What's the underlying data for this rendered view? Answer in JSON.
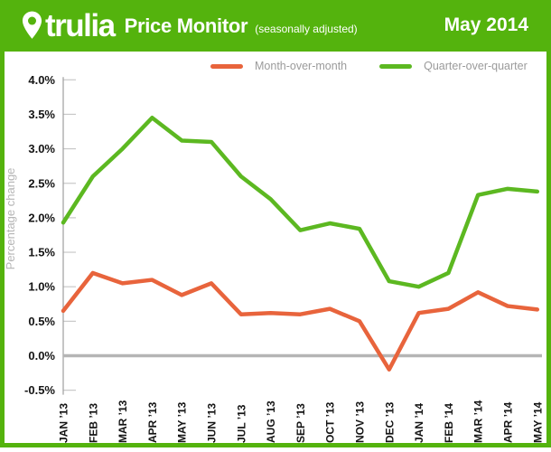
{
  "header": {
    "logo_text": "trulia",
    "title": "Price Monitor",
    "subtitle": "(seasonally adjusted)",
    "date": "May 2014"
  },
  "legend": {
    "items": [
      {
        "label": "Month-over-month",
        "color": "#E8643C"
      },
      {
        "label": "Quarter-over-quarter",
        "color": "#5CB821"
      }
    ]
  },
  "chart_data": {
    "type": "line",
    "title": "Trulia Price Monitor (seasonally adjusted) - May 2014",
    "xlabel": "",
    "ylabel": "Percentage change",
    "categories": [
      "JAN ’13",
      "FEB ’13",
      "MAR ’13",
      "APR ’13",
      "MAY ’13",
      "JUN ’13",
      "JUL ’13",
      "AUG ’13",
      "SEP ’13",
      "OCT ’13",
      "NOV ’13",
      "DEC ’13",
      "JAN ’14",
      "FEB ’14",
      "MAR ’14",
      "APR ’14",
      "MAY ’14"
    ],
    "series": [
      {
        "name": "Month-over-month",
        "color": "#E8643C",
        "values": [
          0.65,
          1.2,
          1.05,
          1.1,
          0.88,
          1.05,
          0.6,
          0.62,
          0.6,
          0.68,
          0.5,
          -0.2,
          0.62,
          0.68,
          0.92,
          0.72,
          0.67
        ]
      },
      {
        "name": "Quarter-over-quarter",
        "color": "#5CB821",
        "values": [
          1.93,
          2.6,
          3.0,
          3.45,
          3.12,
          3.1,
          2.6,
          2.27,
          1.82,
          1.92,
          1.84,
          1.08,
          1.0,
          1.2,
          2.33,
          2.42,
          2.38
        ]
      }
    ],
    "y_ticks": [
      "4.0%",
      "3.5%",
      "3.0%",
      "2.5%",
      "2.0%",
      "1.5%",
      "1.0%",
      "0.5%",
      "0.0%",
      "-0.5%"
    ],
    "ylim": [
      -0.5,
      4.0
    ],
    "y_tick_step": 0.5,
    "zero_line": true,
    "grid": false,
    "legend_position": "top"
  },
  "colors": {
    "brand_green": "#54B30D",
    "line_green": "#5CB821",
    "line_orange": "#E8643C",
    "axis_gray": "#9E9E9E",
    "tick_gray": "#C8C8C8",
    "zero_line_gray": "#B5B5B5",
    "axis_label_black": "#141414",
    "y_title_gray": "#B5B5B5",
    "legend_text_gray": "#9B9B9B"
  }
}
